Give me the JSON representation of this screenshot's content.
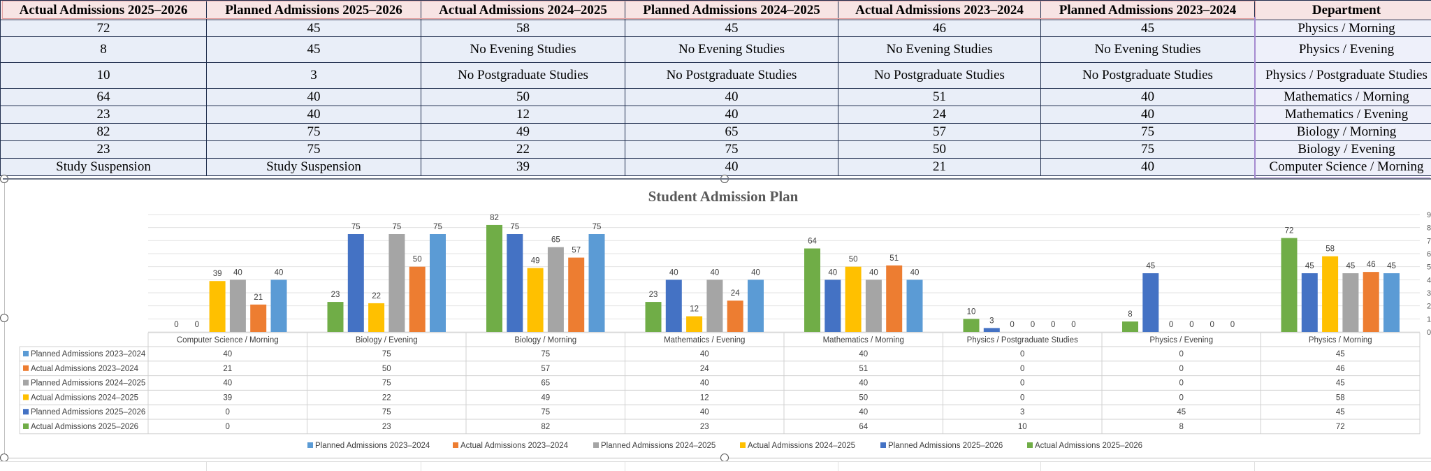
{
  "sheet": {
    "headers": [
      "Actual Admissions 2025–2026",
      "Planned Admissions 2025–2026",
      "Actual Admissions 2024–2025",
      "Planned Admissions 2024–2025",
      "Actual Admissions 2023–2024",
      "Planned Admissions 2023–2024",
      "Department"
    ],
    "rows": [
      [
        "72",
        "45",
        "58",
        "45",
        "46",
        "45",
        "Physics / Morning"
      ],
      [
        "8",
        "45",
        "No Evening Studies",
        "No Evening Studies",
        "No Evening Studies",
        "No Evening Studies",
        "Physics / Evening"
      ],
      [
        "10",
        "3",
        "No Postgraduate Studies",
        "No Postgraduate Studies",
        "No Postgraduate Studies",
        "No Postgraduate Studies",
        "Physics / Postgraduate Studies"
      ],
      [
        "64",
        "40",
        "50",
        "40",
        "51",
        "40",
        "Mathematics / Morning"
      ],
      [
        "23",
        "40",
        "12",
        "40",
        "24",
        "40",
        "Mathematics / Evening"
      ],
      [
        "82",
        "75",
        "49",
        "65",
        "57",
        "75",
        "Biology / Morning"
      ],
      [
        "23",
        "75",
        "22",
        "75",
        "50",
        "75",
        "Biology / Evening"
      ],
      [
        "Study Suspension",
        "Study Suspension",
        "39",
        "40",
        "21",
        "40",
        "Computer Science / Morning"
      ]
    ]
  },
  "chart_data": {
    "type": "bar",
    "title": "Student Admission Plan",
    "categories": [
      "Computer Science / Morning",
      "Biology / Evening",
      "Biology / Morning",
      "Mathematics / Evening",
      "Mathematics / Morning",
      "Physics / Postgraduate Studies",
      "Physics / Evening",
      "Physics / Morning"
    ],
    "series": [
      {
        "name": "Actual Admissions 2025–2026",
        "color": "#70ad47",
        "values": [
          0,
          23,
          82,
          23,
          64,
          10,
          8,
          72
        ]
      },
      {
        "name": "Planned Admissions 2025–2026",
        "color": "#4472c4",
        "values": [
          0,
          75,
          75,
          40,
          40,
          3,
          45,
          45
        ]
      },
      {
        "name": "Actual Admissions 2024–2025",
        "color": "#ffc000",
        "values": [
          39,
          22,
          49,
          12,
          50,
          0,
          0,
          58
        ]
      },
      {
        "name": "Planned Admissions 2024–2025",
        "color": "#a5a5a5",
        "values": [
          40,
          75,
          65,
          40,
          40,
          0,
          0,
          45
        ]
      },
      {
        "name": "Actual Admissions 2023–2024",
        "color": "#ed7d31",
        "values": [
          21,
          50,
          57,
          24,
          51,
          0,
          0,
          46
        ]
      },
      {
        "name": "Planned Admissions 2023–2024",
        "color": "#5b9bd5",
        "values": [
          40,
          75,
          75,
          40,
          40,
          0,
          0,
          45
        ]
      }
    ],
    "table_series_order": [
      "Planned Admissions 2023–2024",
      "Actual Admissions 2023–2024",
      "Planned Admissions 2024–2025",
      "Actual Admissions 2024–2025",
      "Planned Admissions 2025–2026",
      "Actual Admissions 2025–2026"
    ],
    "legend_order": [
      "Planned Admissions 2023–2024",
      "Actual Admissions 2023–2024",
      "Planned Admissions 2024–2025",
      "Actual Admissions 2024–2025",
      "Planned Admissions 2025–2026",
      "Actual Admissions 2025–2026"
    ],
    "ylim": [
      0,
      90
    ],
    "ytick_step": 10,
    "grid": true,
    "data_table": true,
    "legend": "bottom"
  }
}
